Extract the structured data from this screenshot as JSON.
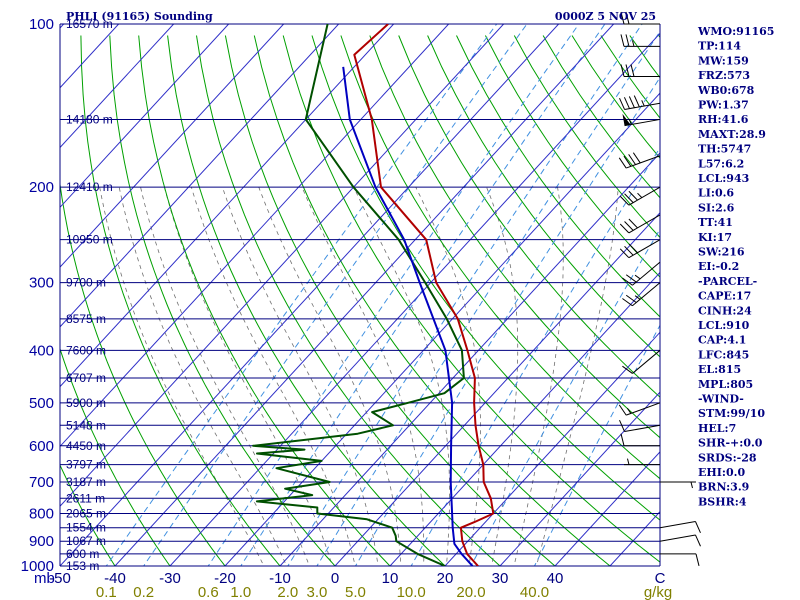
{
  "header": {
    "station": "PHLI (91165) Sounding",
    "time": "0000Z  5 NOV 25"
  },
  "indices": [
    "WMO:91165",
    "TP:114",
    "MW:159",
    "FRZ:573",
    "WB0:678",
    "PW:1.37",
    "RH:41.6",
    "MAXT:28.9",
    "TH:5747",
    "L57:6.2",
    "LCL:943",
    "LI:0.6",
    "SI:2.6",
    "TT:41",
    "KI:17",
    "SW:216",
    "EI:-0.2",
    "-PARCEL-",
    "CAPE:17",
    "CINH:24",
    "LCL:910",
    "CAP:4.1",
    "LFC:845",
    "EL:815",
    "MPL:805",
    "-WIND-",
    "STM:99/10",
    "HEL:7",
    "SHR-+:0.0",
    "SRDS:-28",
    "EHI:0.0",
    "BRN:3.9",
    "BSHR:4"
  ],
  "colors": {
    "isobar": "#000080",
    "isotherm": "#3030c8",
    "dry_adiabat": "#00a000",
    "moist_adiabat": "#707070",
    "mixing_ratio": "#4090e0",
    "temperature": "#b00000",
    "dewpoint": "#005000",
    "parcel": "#0000c0",
    "wind_barb": "#000000",
    "temp_axis_text": "#000080",
    "mixratio_axis_text": "#808000"
  },
  "chart_data": {
    "type": "line",
    "diagram": "Skew-T log-P sounding",
    "title": "PHLI (91165) Sounding",
    "pressure_unit_label": "mb",
    "mixing_ratio_unit_label": "g/kg",
    "pressure_range_mb": [
      100,
      1000
    ],
    "temperature_tick_labels": [
      "-50",
      "-40",
      "-30",
      "-20",
      "-10",
      "0",
      "10",
      "20",
      "30",
      "40",
      "C"
    ],
    "temperature_ticks_c": [
      -50,
      -40,
      -30,
      -20,
      -10,
      0,
      10,
      20,
      30,
      40
    ],
    "mixing_ratio_tick_labels": [
      "0.1",
      "0.2",
      "0.6",
      "1.0",
      "2.0",
      "3.0",
      "5.0",
      "10.0",
      "20.0",
      "40.0",
      "g/kg"
    ],
    "mixing_ratio_values_gkg": [
      0.1,
      0.2,
      0.6,
      1.0,
      2.0,
      3.0,
      5.0,
      10.0,
      20.0,
      40.0
    ],
    "pressure_tick_labels": [
      {
        "p": 100,
        "label": "100"
      },
      {
        "p": 200,
        "label": "200"
      },
      {
        "p": 300,
        "label": "300"
      },
      {
        "p": 400,
        "label": "400"
      },
      {
        "p": 500,
        "label": "500"
      },
      {
        "p": 600,
        "label": "600"
      },
      {
        "p": 700,
        "label": "700"
      },
      {
        "p": 800,
        "label": "800"
      },
      {
        "p": 900,
        "label": "900"
      },
      {
        "p": 1000,
        "label": "1000"
      }
    ],
    "height_labels": [
      {
        "p": 100,
        "label": "16570 m"
      },
      {
        "p": 150,
        "label": "14180 m"
      },
      {
        "p": 200,
        "label": "12410 m"
      },
      {
        "p": 250,
        "label": "10950 m"
      },
      {
        "p": 300,
        "label": "9700 m"
      },
      {
        "p": 350,
        "label": "8575 m"
      },
      {
        "p": 400,
        "label": "7600 m"
      },
      {
        "p": 450,
        "label": "6707 m"
      },
      {
        "p": 500,
        "label": "5900 m"
      },
      {
        "p": 550,
        "label": "5148 m"
      },
      {
        "p": 600,
        "label": "4450 m"
      },
      {
        "p": 650,
        "label": "3797 m"
      },
      {
        "p": 700,
        "label": "3187 m"
      },
      {
        "p": 750,
        "label": "2611 m"
      },
      {
        "p": 800,
        "label": "2065 m"
      },
      {
        "p": 850,
        "label": "1554 m"
      },
      {
        "p": 900,
        "label": "1067 m"
      },
      {
        "p": 950,
        "label": "600 m"
      },
      {
        "p": 1000,
        "label": "153 m"
      }
    ],
    "series": [
      {
        "key": "temperature",
        "points": [
          {
            "p": 100,
            "t": -81
          },
          {
            "p": 114,
            "t": -82
          },
          {
            "p": 150,
            "t": -68
          },
          {
            "p": 200,
            "t": -55
          },
          {
            "p": 250,
            "t": -38
          },
          {
            "p": 300,
            "t": -29
          },
          {
            "p": 350,
            "t": -19
          },
          {
            "p": 400,
            "t": -12
          },
          {
            "p": 450,
            "t": -6
          },
          {
            "p": 500,
            "t": -2
          },
          {
            "p": 550,
            "t": 2
          },
          {
            "p": 600,
            "t": 6
          },
          {
            "p": 650,
            "t": 10
          },
          {
            "p": 700,
            "t": 13
          },
          {
            "p": 750,
            "t": 17
          },
          {
            "p": 800,
            "t": 20
          },
          {
            "p": 830,
            "t": 18
          },
          {
            "p": 850,
            "t": 16.5
          },
          {
            "p": 900,
            "t": 19
          },
          {
            "p": 950,
            "t": 22
          },
          {
            "p": 1000,
            "t": 26
          }
        ]
      },
      {
        "key": "dewpoint",
        "points": [
          {
            "p": 100,
            "t": -92
          },
          {
            "p": 150,
            "t": -80
          },
          {
            "p": 200,
            "t": -60
          },
          {
            "p": 250,
            "t": -43
          },
          {
            "p": 300,
            "t": -31
          },
          {
            "p": 350,
            "t": -21
          },
          {
            "p": 400,
            "t": -13
          },
          {
            "p": 450,
            "t": -8
          },
          {
            "p": 480,
            "t": -9
          },
          {
            "p": 500,
            "t": -14
          },
          {
            "p": 520,
            "t": -19
          },
          {
            "p": 550,
            "t": -13
          },
          {
            "p": 570,
            "t": -18
          },
          {
            "p": 600,
            "t": -35
          },
          {
            "p": 610,
            "t": -25
          },
          {
            "p": 620,
            "t": -33
          },
          {
            "p": 640,
            "t": -20
          },
          {
            "p": 660,
            "t": -27
          },
          {
            "p": 700,
            "t": -15
          },
          {
            "p": 720,
            "t": -22
          },
          {
            "p": 740,
            "t": -16
          },
          {
            "p": 760,
            "t": -25
          },
          {
            "p": 780,
            "t": -13
          },
          {
            "p": 800,
            "t": -12
          },
          {
            "p": 820,
            "t": -2
          },
          {
            "p": 850,
            "t": 4
          },
          {
            "p": 880,
            "t": 6
          },
          {
            "p": 900,
            "t": 7
          },
          {
            "p": 950,
            "t": 13
          },
          {
            "p": 1000,
            "t": 20
          }
        ]
      },
      {
        "key": "parcel",
        "points": [
          {
            "p": 1000,
            "t": 25
          },
          {
            "p": 950,
            "t": 21
          },
          {
            "p": 910,
            "t": 18
          },
          {
            "p": 850,
            "t": 15
          },
          {
            "p": 800,
            "t": 12.5
          },
          {
            "p": 700,
            "t": 7
          },
          {
            "p": 600,
            "t": 1
          },
          {
            "p": 500,
            "t": -6
          },
          {
            "p": 400,
            "t": -16
          },
          {
            "p": 300,
            "t": -32
          },
          {
            "p": 250,
            "t": -42
          },
          {
            "p": 200,
            "t": -56
          },
          {
            "p": 150,
            "t": -72
          },
          {
            "p": 120,
            "t": -82
          }
        ]
      }
    ],
    "wind_barbs": [
      {
        "p": 100,
        "dir": 270,
        "spd": 20
      },
      {
        "p": 110,
        "dir": 270,
        "spd": 25
      },
      {
        "p": 125,
        "dir": 270,
        "spd": 30
      },
      {
        "p": 140,
        "dir": 260,
        "spd": 45
      },
      {
        "p": 150,
        "dir": 260,
        "spd": 55
      },
      {
        "p": 175,
        "dir": 250,
        "spd": 40
      },
      {
        "p": 200,
        "dir": 240,
        "spd": 35
      },
      {
        "p": 225,
        "dir": 240,
        "spd": 30
      },
      {
        "p": 250,
        "dir": 240,
        "spd": 30
      },
      {
        "p": 275,
        "dir": 230,
        "spd": 25
      },
      {
        "p": 300,
        "dir": 230,
        "spd": 25
      },
      {
        "p": 400,
        "dir": 230,
        "spd": 10
      },
      {
        "p": 500,
        "dir": 250,
        "spd": 15
      },
      {
        "p": 550,
        "dir": 260,
        "spd": 10
      },
      {
        "p": 600,
        "dir": 270,
        "spd": 10
      },
      {
        "p": 650,
        "dir": 270,
        "spd": 5
      },
      {
        "p": 700,
        "dir": 90,
        "spd": 5
      },
      {
        "p": 850,
        "dir": 80,
        "spd": 10
      },
      {
        "p": 900,
        "dir": 80,
        "spd": 10
      },
      {
        "p": 950,
        "dir": 90,
        "spd": 10
      }
    ]
  }
}
